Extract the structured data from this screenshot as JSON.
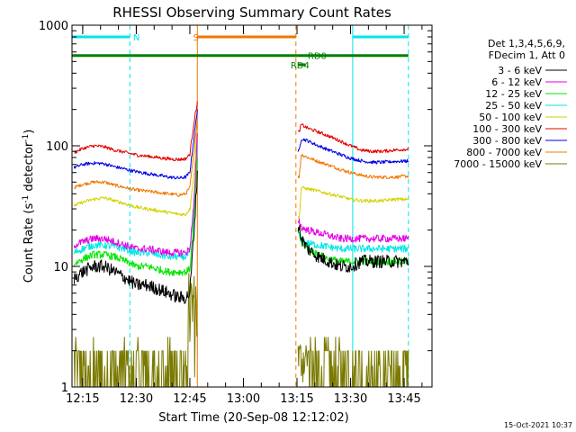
{
  "chart_data": {
    "type": "line",
    "title": "RHESSI Observing Summary Count Rates",
    "xlabel": "Start Time (20-Sep-08 12:12:02)",
    "ylabel": "Count Rate (s",
    "ylabel_sup": "-1",
    "ylabel_tail": " detector",
    "ylabel_sup2": "-1",
    "ylabel_close": ")",
    "y_scale": "log",
    "ylim": [
      1,
      1000
    ],
    "xlim": [
      12.2,
      13.88
    ],
    "x_ticks": [
      {
        "label": "12:15",
        "value": 12.25
      },
      {
        "label": "12:30",
        "value": 12.5
      },
      {
        "label": "12:45",
        "value": 12.75
      },
      {
        "label": "13:00",
        "value": 13.0
      },
      {
        "label": "13:15",
        "value": 13.25
      },
      {
        "label": "13:30",
        "value": 13.5
      },
      {
        "label": "13:45",
        "value": 13.75
      }
    ],
    "y_ticks": [
      {
        "label": "1",
        "value": 1
      },
      {
        "label": "10",
        "value": 10
      },
      {
        "label": "100",
        "value": 100
      },
      {
        "label": "1000",
        "value": 1000
      }
    ],
    "legend": {
      "placement": "right",
      "header": [
        "Det 1,3,4,5,6,9,",
        "FDecim 1, Att 0"
      ],
      "entries": [
        {
          "label": "3 - 6 keV",
          "color": "#000000"
        },
        {
          "label": "6 - 12 keV",
          "color": "#e600e6"
        },
        {
          "label": "12 - 25 keV",
          "color": "#00e600"
        },
        {
          "label": "25 - 50 keV",
          "color": "#00e6e6"
        },
        {
          "label": "50 - 100 keV",
          "color": "#d2d200"
        },
        {
          "label": "100 - 300 keV",
          "color": "#e60000"
        },
        {
          "label": "300 - 800 keV",
          "color": "#0000e6"
        },
        {
          "label": "800 - 7000 keV",
          "color": "#f07800"
        },
        {
          "label": "7000 - 15000 keV",
          "color": "#7a7a00"
        }
      ]
    },
    "flags": [
      {
        "label": "N",
        "color": "#00e6e6",
        "level": 800,
        "segments": [
          [
            12.2,
            12.47
          ],
          [
            13.51,
            13.77
          ]
        ],
        "label_at": 12.485
      },
      {
        "label": "S",
        "color": "#f07800",
        "level": 800,
        "segments": [
          [
            12.785,
            13.245
          ]
        ],
        "label_at": 12.765
      },
      {
        "label": "RD4",
        "color": "#008000",
        "level": 560,
        "segments": [
          [
            12.2,
            13.77
          ]
        ],
        "label_at": null
      },
      {
        "label": "RD4",
        "color": "#008000",
        "level": 470,
        "segments": [
          [
            13.255,
            13.29
          ]
        ],
        "label_at": 13.22
      },
      {
        "label": "RD0",
        "color": "#008000",
        "level": 560,
        "segments": [],
        "label_at": 13.3
      }
    ],
    "vlines": [
      {
        "x": 12.2,
        "color": "#00e6e6",
        "dash": false
      },
      {
        "x": 12.47,
        "color": "#00e6e6",
        "dash": true
      },
      {
        "x": 12.785,
        "color": "#f07800",
        "dash": false
      },
      {
        "x": 13.245,
        "color": "#f07800",
        "dash": true
      },
      {
        "x": 13.51,
        "color": "#00e6e6",
        "dash": false
      },
      {
        "x": 13.77,
        "color": "#00e6e6",
        "dash": true
      }
    ],
    "data_gap": [
      12.785,
      13.255
    ],
    "series": [
      {
        "name": "3 - 6 keV",
        "color": "#000000",
        "x": [
          12.21,
          12.25,
          12.3,
          12.35,
          12.4,
          12.45,
          12.5,
          12.55,
          12.6,
          12.65,
          12.7,
          12.73,
          12.75,
          12.77,
          12.785,
          13.26,
          13.27,
          13.3,
          13.35,
          13.4,
          13.45,
          13.5,
          13.55,
          13.6,
          13.65,
          13.7,
          13.77
        ],
        "y": [
          8,
          9,
          10,
          10,
          9,
          8,
          7,
          7,
          6.5,
          6,
          5.5,
          5.5,
          6,
          20,
          60,
          21,
          17,
          14,
          12,
          11,
          10,
          10,
          11,
          11,
          11,
          11,
          11
        ]
      },
      {
        "name": "6 - 12 keV",
        "color": "#e600e6",
        "x": [
          12.21,
          12.25,
          12.3,
          12.35,
          12.4,
          12.45,
          12.5,
          12.55,
          12.6,
          12.65,
          12.7,
          12.73,
          12.75,
          12.77,
          12.785,
          13.26,
          13.27,
          13.3,
          13.35,
          13.4,
          13.45,
          13.5,
          13.55,
          13.6,
          13.65,
          13.7,
          13.77
        ],
        "y": [
          15,
          16,
          17,
          17,
          16,
          15,
          14,
          14,
          13.5,
          13,
          13,
          13,
          14,
          35,
          120,
          24,
          21,
          20,
          19,
          18,
          17,
          17,
          17,
          17,
          17,
          17,
          17
        ]
      },
      {
        "name": "12 - 25 keV",
        "color": "#00e600",
        "x": [
          12.21,
          12.25,
          12.3,
          12.35,
          12.4,
          12.45,
          12.5,
          12.55,
          12.6,
          12.65,
          12.7,
          12.73,
          12.75,
          12.77,
          12.785,
          13.26,
          13.27,
          13.3,
          13.35,
          13.4,
          13.45,
          13.5,
          13.55,
          13.6,
          13.65,
          13.7,
          13.77
        ],
        "y": [
          10.5,
          11.5,
          12.5,
          12.5,
          12,
          11,
          10,
          10,
          9.5,
          9,
          9,
          9,
          9.5,
          25,
          80,
          18,
          16,
          14,
          12.5,
          11.5,
          11,
          11,
          11,
          11,
          11,
          11,
          11
        ]
      },
      {
        "name": "25 - 50 keV",
        "color": "#00e6e6",
        "x": [
          12.21,
          12.25,
          12.3,
          12.35,
          12.4,
          12.45,
          12.5,
          12.55,
          12.6,
          12.65,
          12.7,
          12.73,
          12.75,
          12.77,
          12.785,
          13.26,
          13.27,
          13.3,
          13.35,
          13.4,
          13.45,
          13.5,
          13.55,
          13.6,
          13.65,
          13.7,
          13.77
        ],
        "y": [
          13,
          14,
          15,
          15,
          14.5,
          14,
          13,
          13,
          12.5,
          12,
          12,
          12,
          13,
          30,
          100,
          19,
          16.5,
          15.5,
          15,
          14.5,
          14,
          14,
          14,
          14,
          14,
          14,
          14
        ]
      },
      {
        "name": "50 - 100 keV",
        "color": "#d2d200",
        "x": [
          12.21,
          12.25,
          12.3,
          12.35,
          12.4,
          12.45,
          12.5,
          12.55,
          12.6,
          12.65,
          12.7,
          12.73,
          12.75,
          12.77,
          12.785,
          13.26,
          13.27,
          13.3,
          13.35,
          13.4,
          13.45,
          13.5,
          13.55,
          13.6,
          13.65,
          13.7,
          13.77
        ],
        "y": [
          32,
          34,
          36,
          37,
          35,
          33,
          31,
          30,
          29,
          28,
          27,
          27,
          30,
          60,
          140,
          25,
          45,
          44,
          42,
          40,
          38,
          36,
          35,
          35,
          35,
          36,
          36
        ]
      },
      {
        "name": "100 - 300 keV",
        "color": "#e60000",
        "x": [
          12.21,
          12.25,
          12.3,
          12.35,
          12.4,
          12.45,
          12.5,
          12.55,
          12.6,
          12.65,
          12.7,
          12.73,
          12.75,
          12.77,
          12.785,
          13.26,
          13.27,
          13.3,
          13.35,
          13.4,
          13.45,
          13.5,
          13.55,
          13.6,
          13.65,
          13.7,
          13.77
        ],
        "y": [
          88,
          95,
          100,
          98,
          92,
          88,
          84,
          82,
          80,
          78,
          77,
          78,
          85,
          160,
          230,
          130,
          150,
          140,
          130,
          120,
          110,
          100,
          92,
          90,
          90,
          92,
          94
        ]
      },
      {
        "name": "300 - 800 keV",
        "color": "#0000e6",
        "x": [
          12.21,
          12.25,
          12.3,
          12.35,
          12.4,
          12.45,
          12.5,
          12.55,
          12.6,
          12.65,
          12.7,
          12.73,
          12.75,
          12.77,
          12.785,
          13.26,
          13.27,
          13.3,
          13.35,
          13.4,
          13.45,
          13.5,
          13.55,
          13.6,
          13.65,
          13.7,
          13.77
        ],
        "y": [
          66,
          70,
          72,
          71,
          67,
          64,
          61,
          59,
          57,
          55,
          54,
          55,
          60,
          120,
          200,
          90,
          115,
          110,
          100,
          92,
          85,
          79,
          75,
          73,
          73,
          74,
          75
        ]
      },
      {
        "name": "800 - 7000 keV",
        "color": "#f07800",
        "x": [
          12.21,
          12.25,
          12.3,
          12.35,
          12.4,
          12.45,
          12.5,
          12.55,
          12.6,
          12.65,
          12.7,
          12.73,
          12.75,
          12.77,
          12.785,
          13.26,
          13.27,
          13.3,
          13.35,
          13.4,
          13.45,
          13.5,
          13.55,
          13.6,
          13.65,
          13.7,
          13.77
        ],
        "y": [
          45,
          48,
          50,
          50,
          47,
          45,
          43,
          42,
          41,
          40,
          39,
          40,
          45,
          90,
          170,
          55,
          85,
          80,
          74,
          69,
          64,
          60,
          57,
          55,
          55,
          55,
          56
        ]
      },
      {
        "name": "7000 - 15000 keV",
        "color": "#7a7a00",
        "x": [
          12.21,
          12.25,
          12.3,
          12.35,
          12.4,
          12.45,
          12.5,
          12.55,
          12.6,
          12.65,
          12.7,
          12.73,
          12.75,
          12.77,
          12.785,
          13.26,
          13.27,
          13.3,
          13.35,
          13.4,
          13.45,
          13.5,
          13.55,
          13.6,
          13.65,
          13.7,
          13.77
        ],
        "y": [
          1.8,
          2,
          2.5,
          2,
          1.8,
          2.6,
          1.6,
          1.5,
          1.8,
          1.5,
          1.3,
          1.3,
          1.5,
          2.5,
          3,
          2.1,
          1.8,
          1.4,
          1.1,
          1,
          1,
          1,
          1,
          1,
          1,
          1,
          1
        ]
      }
    ]
  },
  "footer": {
    "timestamp": "15-Oct-2021 10:37"
  }
}
